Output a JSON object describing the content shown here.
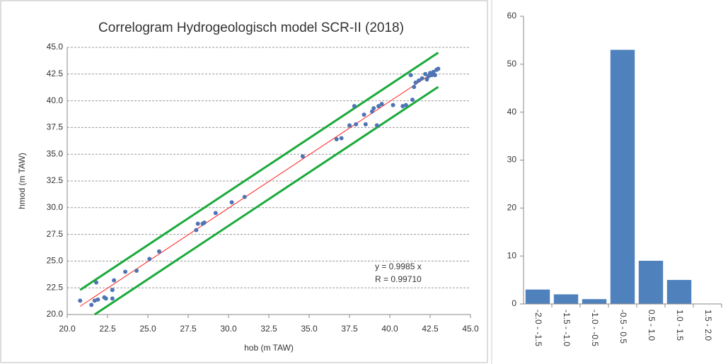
{
  "chart_data": [
    {
      "type": "scatter",
      "title": "Correlogram Hydrogeologisch model SCR-II (2018)",
      "x_label": "hob (m TAW)",
      "y_label": "hmod (m TAW)",
      "annotations": [
        "y = 0.9985 x",
        "R = 0.99710"
      ],
      "xlim": [
        20,
        45
      ],
      "ylim": [
        20,
        45
      ],
      "xticks": [
        {
          "value": 20,
          "label": "20.0"
        },
        {
          "value": 22.5,
          "label": "22.5"
        },
        {
          "value": 25,
          "label": "25.0"
        },
        {
          "value": 27.5,
          "label": "27.5"
        },
        {
          "value": 30,
          "label": "30.0"
        },
        {
          "value": 32.5,
          "label": "32.5"
        },
        {
          "value": 35,
          "label": "35.0"
        },
        {
          "value": 37.5,
          "label": "37.5"
        },
        {
          "value": 40,
          "label": "40.0"
        },
        {
          "value": 42.5,
          "label": "42.5"
        },
        {
          "value": 45,
          "label": "45.0"
        }
      ],
      "yticks": [
        {
          "value": 20,
          "label": "20.0"
        },
        {
          "value": 22.5,
          "label": "22.5"
        },
        {
          "value": 25,
          "label": "25.0"
        },
        {
          "value": 27.5,
          "label": "27.5"
        },
        {
          "value": 30,
          "label": "30.0"
        },
        {
          "value": 32.5,
          "label": "32.5"
        },
        {
          "value": 35,
          "label": "35.0"
        },
        {
          "value": 37.5,
          "label": "37.5"
        },
        {
          "value": 40,
          "label": "40.0"
        },
        {
          "value": 42.5,
          "label": "42.5"
        },
        {
          "value": 45,
          "label": "45.0"
        }
      ],
      "grid": true,
      "series": [
        {
          "type": "scatter",
          "color": "#4f74b4",
          "x": [
            20.8,
            21.5,
            21.7,
            21.8,
            21.9,
            22.3,
            22.4,
            22.8,
            22.8,
            22.9,
            23.6,
            24.3,
            25.1,
            25.7,
            28.0,
            28.1,
            28.4,
            28.5,
            29.2,
            30.2,
            31.0,
            34.6,
            36.7,
            37.0,
            37.5,
            37.8,
            37.9,
            38.4,
            38.5,
            38.9,
            39.0,
            39.2,
            39.3,
            39.5,
            40.2,
            40.8,
            41.0,
            41.3,
            41.4,
            41.5,
            41.6,
            41.8,
            42.0,
            42.2,
            42.3,
            42.4,
            42.5,
            42.6,
            42.7,
            42.8,
            42.9,
            43.0
          ],
          "values": [
            21.3,
            20.9,
            21.3,
            23.0,
            21.4,
            21.6,
            21.5,
            22.3,
            21.5,
            23.2,
            24.0,
            24.1,
            25.2,
            25.9,
            27.9,
            28.5,
            28.5,
            28.6,
            29.5,
            30.5,
            31.0,
            34.8,
            36.4,
            36.5,
            37.7,
            39.5,
            37.8,
            38.7,
            37.8,
            39.0,
            39.3,
            37.7,
            39.5,
            39.7,
            39.6,
            39.5,
            39.6,
            42.4,
            40.1,
            41.3,
            41.7,
            41.9,
            42.1,
            42.5,
            42.0,
            42.3,
            42.6,
            42.4,
            42.7,
            42.4,
            42.9,
            43.0
          ]
        },
        {
          "type": "line",
          "color": "#ff2020",
          "x": [
            20.8,
            43.0
          ],
          "values": [
            20.77,
            42.94
          ]
        },
        {
          "type": "line",
          "color": "#1aaa3a",
          "x": [
            20.8,
            43.0
          ],
          "values": [
            22.3,
            44.5
          ]
        },
        {
          "type": "line",
          "color": "#1aaa3a",
          "x": [
            21.7,
            43.0
          ],
          "values": [
            20.0,
            41.3
          ]
        }
      ]
    },
    {
      "type": "bar",
      "categories": [
        "-2.0 - -1.5",
        "-1.5 - -1.0",
        "-1.0 - -0.5",
        "-0.5 - 0.5",
        "0.5 - 1.0",
        "1.0 - 1.5",
        "1.5 - 2.0"
      ],
      "values": [
        3,
        2,
        1,
        53,
        9,
        5,
        0
      ],
      "color": "#4f81bd",
      "ylim": [
        0,
        60
      ],
      "yticks": [
        0,
        10,
        20,
        30,
        40,
        50,
        60
      ]
    }
  ]
}
